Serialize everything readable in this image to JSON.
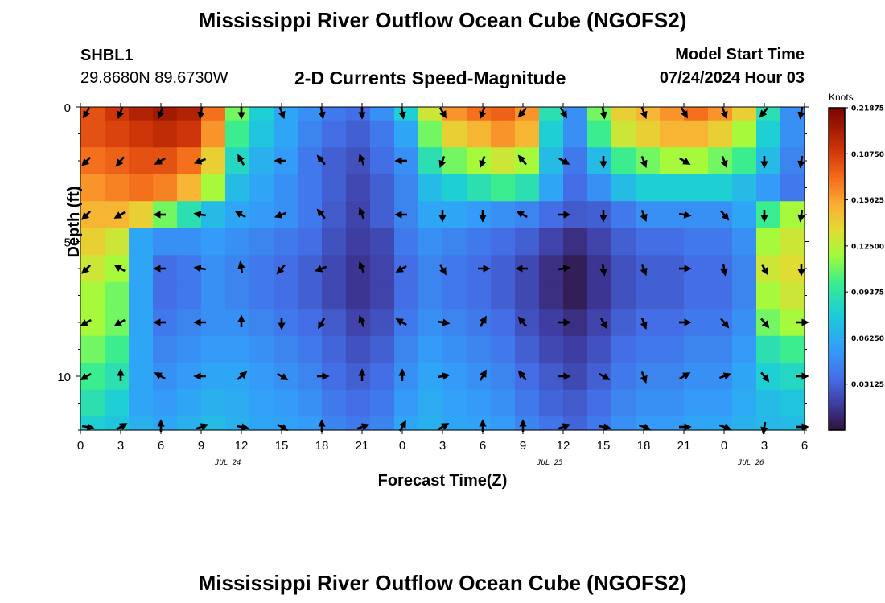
{
  "page": {
    "title": "Mississippi River Outflow Ocean Cube (NGOFS2)",
    "title_repeat": "Mississippi River Outflow Ocean Cube (NGOFS2)",
    "station_id": "SHBL1",
    "coordinates": "29.8680N  89.6730W",
    "subtitle": "2-D Currents Speed-Magnitude",
    "model_start_label": "Model Start Time",
    "model_start_value": "07/24/2024 Hour 03"
  },
  "chart_data": {
    "type": "heatmap",
    "title": "2-D Currents Speed-Magnitude",
    "xlabel": "Forecast Time(Z)",
    "ylabel": "Depth (ft)",
    "x_hours": [
      0,
      3,
      6,
      9,
      12,
      15,
      18,
      21,
      24,
      27,
      30,
      33,
      36,
      39,
      42,
      45,
      48,
      51,
      54
    ],
    "x_tick_labels": [
      "0",
      "3",
      "6",
      "9",
      "12",
      "15",
      "18",
      "21",
      "0",
      "3",
      "6",
      "9",
      "12",
      "15",
      "18",
      "21",
      "0",
      "3",
      "6"
    ],
    "date_labels": [
      {
        "hour": 11,
        "text": "JUL 24"
      },
      {
        "hour": 35,
        "text": "JUL 25"
      },
      {
        "hour": 50,
        "text": "JUL 26"
      }
    ],
    "y_ticks": [
      0,
      5,
      10
    ],
    "ylim": [
      0,
      12
    ],
    "depth_rows_ft": [
      0,
      1,
      2,
      3,
      4,
      5,
      6,
      7,
      8,
      9,
      10,
      11,
      12
    ],
    "colorbar": {
      "units": "Knots",
      "min": 0,
      "max": 0.21875,
      "tick_labels": [
        "0.21875",
        "0.18750",
        "0.15625",
        "0.12500",
        "0.09375",
        "0.06250",
        "0.03125"
      ],
      "tick_values": [
        0.21875,
        0.1875,
        0.15625,
        0.125,
        0.09375,
        0.0625,
        0.03125
      ]
    },
    "speed_knots": [
      [
        0.18,
        0.19,
        0.2,
        0.205,
        0.2,
        0.17,
        0.11,
        0.08,
        0.06,
        0.05,
        0.04,
        0.035,
        0.05,
        0.08,
        0.13,
        0.16,
        0.17,
        0.175,
        0.16,
        0.09,
        0.05,
        0.11,
        0.14,
        0.15,
        0.16,
        0.17,
        0.16,
        0.14,
        0.09,
        0.05
      ],
      [
        0.18,
        0.185,
        0.19,
        0.195,
        0.19,
        0.16,
        0.1,
        0.075,
        0.06,
        0.045,
        0.035,
        0.03,
        0.04,
        0.06,
        0.11,
        0.14,
        0.15,
        0.16,
        0.15,
        0.08,
        0.05,
        0.1,
        0.13,
        0.14,
        0.15,
        0.15,
        0.14,
        0.12,
        0.08,
        0.05
      ],
      [
        0.17,
        0.175,
        0.18,
        0.18,
        0.17,
        0.14,
        0.085,
        0.065,
        0.055,
        0.04,
        0.03,
        0.025,
        0.035,
        0.05,
        0.09,
        0.11,
        0.12,
        0.13,
        0.12,
        0.07,
        0.04,
        0.07,
        0.1,
        0.11,
        0.12,
        0.12,
        0.11,
        0.1,
        0.07,
        0.045
      ],
      [
        0.16,
        0.165,
        0.17,
        0.165,
        0.15,
        0.12,
        0.07,
        0.06,
        0.05,
        0.04,
        0.03,
        0.022,
        0.03,
        0.045,
        0.07,
        0.08,
        0.09,
        0.1,
        0.09,
        0.06,
        0.035,
        0.05,
        0.07,
        0.08,
        0.08,
        0.08,
        0.08,
        0.07,
        0.055,
        0.04
      ],
      [
        0.15,
        0.15,
        0.14,
        0.11,
        0.09,
        0.07,
        0.06,
        0.055,
        0.05,
        0.04,
        0.028,
        0.02,
        0.03,
        0.045,
        0.06,
        0.06,
        0.055,
        0.05,
        0.045,
        0.035,
        0.028,
        0.03,
        0.04,
        0.05,
        0.05,
        0.05,
        0.05,
        0.06,
        0.1,
        0.12
      ],
      [
        0.14,
        0.13,
        0.06,
        0.05,
        0.05,
        0.055,
        0.05,
        0.045,
        0.04,
        0.035,
        0.025,
        0.018,
        0.022,
        0.04,
        0.05,
        0.045,
        0.04,
        0.035,
        0.03,
        0.02,
        0.012,
        0.02,
        0.03,
        0.035,
        0.035,
        0.04,
        0.04,
        0.05,
        0.12,
        0.13
      ],
      [
        0.13,
        0.12,
        0.06,
        0.035,
        0.04,
        0.05,
        0.045,
        0.04,
        0.035,
        0.03,
        0.022,
        0.015,
        0.02,
        0.035,
        0.045,
        0.04,
        0.035,
        0.03,
        0.022,
        0.012,
        0.005,
        0.015,
        0.025,
        0.03,
        0.03,
        0.035,
        0.035,
        0.045,
        0.13,
        0.135
      ],
      [
        0.12,
        0.11,
        0.06,
        0.035,
        0.04,
        0.05,
        0.045,
        0.04,
        0.035,
        0.03,
        0.022,
        0.015,
        0.02,
        0.035,
        0.045,
        0.04,
        0.035,
        0.03,
        0.022,
        0.012,
        0.005,
        0.015,
        0.025,
        0.03,
        0.03,
        0.035,
        0.035,
        0.045,
        0.12,
        0.13
      ],
      [
        0.12,
        0.11,
        0.06,
        0.04,
        0.045,
        0.05,
        0.05,
        0.045,
        0.04,
        0.035,
        0.028,
        0.02,
        0.025,
        0.04,
        0.05,
        0.045,
        0.04,
        0.035,
        0.025,
        0.018,
        0.012,
        0.02,
        0.03,
        0.035,
        0.035,
        0.04,
        0.04,
        0.05,
        0.11,
        0.12
      ],
      [
        0.11,
        0.1,
        0.06,
        0.045,
        0.05,
        0.055,
        0.055,
        0.05,
        0.045,
        0.04,
        0.032,
        0.025,
        0.03,
        0.045,
        0.055,
        0.05,
        0.045,
        0.04,
        0.03,
        0.022,
        0.018,
        0.025,
        0.035,
        0.04,
        0.04,
        0.045,
        0.045,
        0.055,
        0.09,
        0.1
      ],
      [
        0.1,
        0.09,
        0.06,
        0.05,
        0.055,
        0.06,
        0.06,
        0.055,
        0.05,
        0.045,
        0.035,
        0.03,
        0.035,
        0.05,
        0.06,
        0.055,
        0.05,
        0.045,
        0.035,
        0.028,
        0.022,
        0.03,
        0.04,
        0.045,
        0.045,
        0.05,
        0.05,
        0.06,
        0.08,
        0.085
      ],
      [
        0.09,
        0.08,
        0.06,
        0.055,
        0.06,
        0.065,
        0.062,
        0.058,
        0.055,
        0.05,
        0.04,
        0.035,
        0.04,
        0.055,
        0.062,
        0.058,
        0.055,
        0.05,
        0.04,
        0.032,
        0.028,
        0.035,
        0.045,
        0.05,
        0.05,
        0.055,
        0.055,
        0.062,
        0.07,
        0.075
      ],
      [
        0.08,
        0.075,
        0.065,
        0.06,
        0.065,
        0.07,
        0.065,
        0.06,
        0.058,
        0.055,
        0.045,
        0.04,
        0.045,
        0.06,
        0.065,
        0.06,
        0.058,
        0.055,
        0.045,
        0.038,
        0.032,
        0.04,
        0.05,
        0.055,
        0.055,
        0.06,
        0.06,
        0.065,
        0.068,
        0.07
      ]
    ],
    "vector_hours": [
      0,
      3,
      6,
      9,
      12,
      15,
      18,
      21,
      24,
      27,
      30,
      33,
      36,
      39,
      42,
      45,
      48,
      51,
      54
    ],
    "vector_depths_ft": [
      0,
      2,
      4,
      6,
      8,
      10,
      12
    ],
    "vector_directions_deg": [
      [
        210,
        200,
        200,
        190,
        180,
        160,
        170,
        180,
        170,
        150,
        200,
        220,
        150,
        170,
        160,
        150,
        160,
        220,
        190
      ],
      [
        225,
        220,
        240,
        250,
        330,
        270,
        320,
        340,
        270,
        200,
        200,
        320,
        120,
        180,
        160,
        120,
        160,
        180,
        190
      ],
      [
        225,
        240,
        270,
        280,
        300,
        250,
        320,
        340,
        270,
        180,
        180,
        300,
        90,
        180,
        160,
        100,
        140,
        180,
        190
      ],
      [
        225,
        300,
        270,
        280,
        350,
        220,
        250,
        340,
        240,
        150,
        90,
        270,
        80,
        170,
        160,
        90,
        170,
        150,
        180
      ],
      [
        240,
        240,
        270,
        270,
        0,
        180,
        210,
        340,
        300,
        100,
        30,
        320,
        90,
        150,
        160,
        90,
        140,
        140,
        90
      ],
      [
        240,
        0,
        300,
        270,
        50,
        120,
        90,
        0,
        0,
        80,
        30,
        320,
        90,
        120,
        160,
        60,
        70,
        140,
        90
      ],
      [
        100,
        60,
        0,
        70,
        100,
        120,
        0,
        70,
        30,
        60,
        0,
        0,
        70,
        100,
        110,
        90,
        110,
        190,
        90
      ]
    ]
  }
}
